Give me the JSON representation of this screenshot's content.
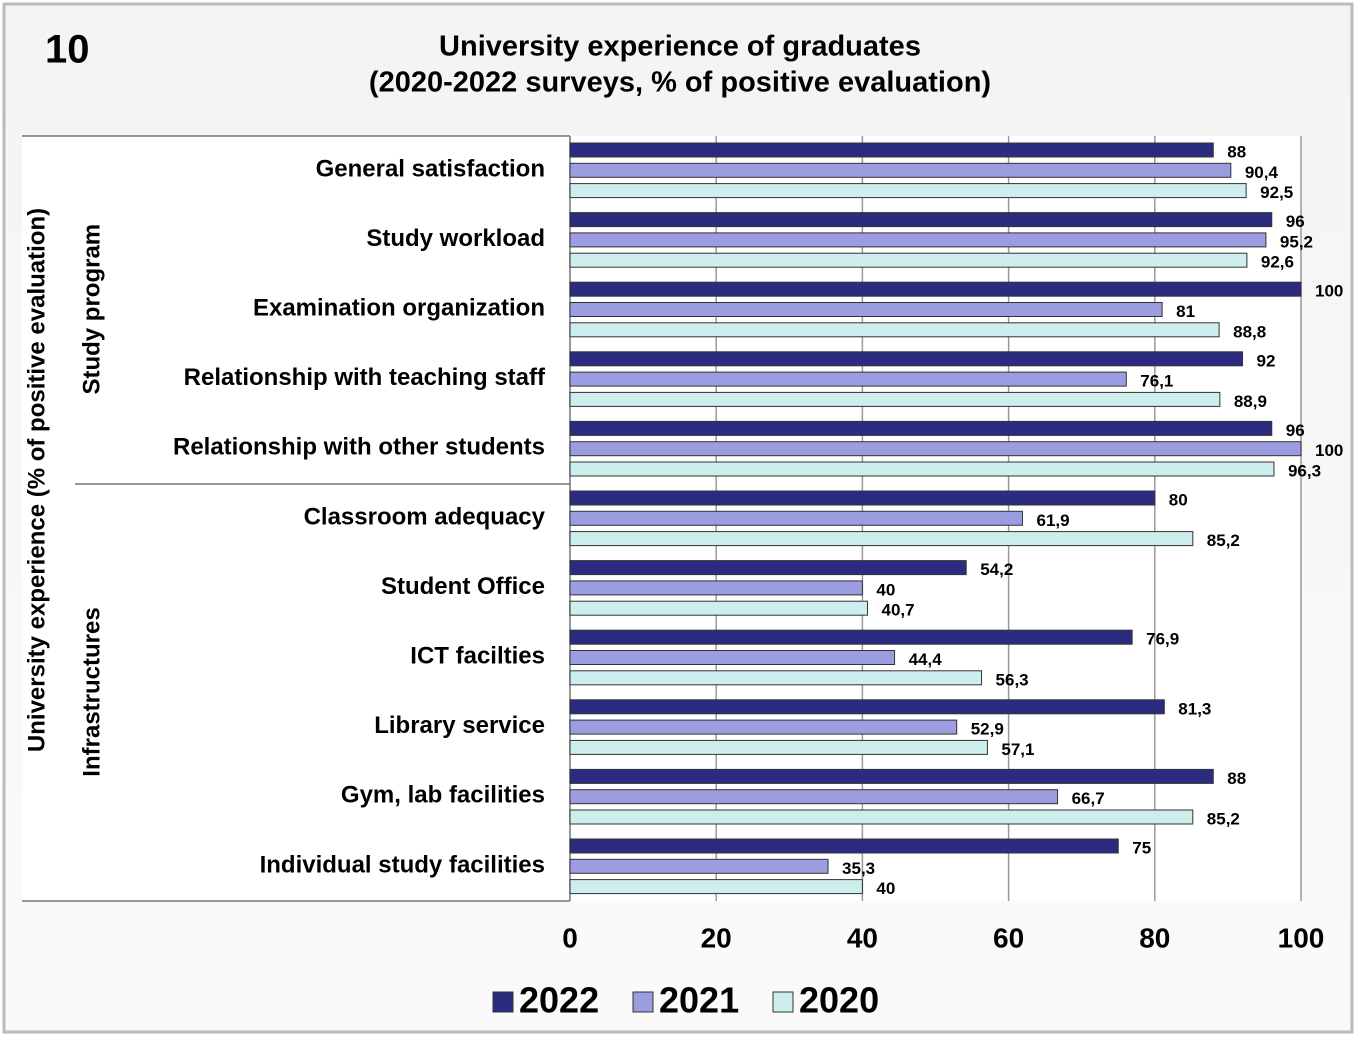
{
  "chart_data": {
    "type": "bar",
    "orientation": "horizontal",
    "chart_number": "10",
    "title": [
      "University experience of graduates",
      "(2020-2022 surveys, % of positive evaluation)"
    ],
    "y_axis_label": "University experience (% of positive evaluation)",
    "category_groups": [
      {
        "name": "Study program",
        "categories": [
          "General satisfaction",
          "Study workload",
          "Examination organization",
          "Relationship with teaching staff",
          "Relationship with other students"
        ]
      },
      {
        "name": "Infrastructures",
        "categories": [
          "Classroom adequacy",
          "Student Office",
          "ICT facilties",
          "Library service",
          "Gym, lab facilities",
          "Individual study facilities"
        ]
      }
    ],
    "series": [
      {
        "name": "2022",
        "color": "#2b2b80",
        "values": [
          88,
          96,
          100,
          92,
          96,
          80,
          54.2,
          76.9,
          81.3,
          88,
          75
        ],
        "value_labels": [
          "88",
          "96",
          "100",
          "92",
          "96",
          "80",
          "54,2",
          "76,9",
          "81,3",
          "88",
          "75"
        ]
      },
      {
        "name": "2021",
        "color": "#9c9ce0",
        "values": [
          90.4,
          95.2,
          81,
          76.1,
          100,
          61.9,
          40,
          44.4,
          52.9,
          66.7,
          35.3
        ],
        "value_labels": [
          "90,4",
          "95,2",
          "81",
          "76,1",
          "100",
          "61,9",
          "40",
          "44,4",
          "52,9",
          "66,7",
          "35,3"
        ]
      },
      {
        "name": "2020",
        "color": "#cdeeec",
        "values": [
          92.5,
          92.6,
          88.8,
          88.9,
          96.3,
          85.2,
          40.7,
          56.3,
          57.1,
          85.2,
          40
        ],
        "value_labels": [
          "92,5",
          "92,6",
          "88,8",
          "88,9",
          "96,3",
          "85,2",
          "40,7",
          "56,3",
          "57,1",
          "85,2",
          "40"
        ]
      }
    ],
    "xlim": [
      0,
      100
    ],
    "xticks": [
      0,
      20,
      40,
      60,
      80,
      100
    ],
    "grid": true,
    "legend": "bottom"
  }
}
